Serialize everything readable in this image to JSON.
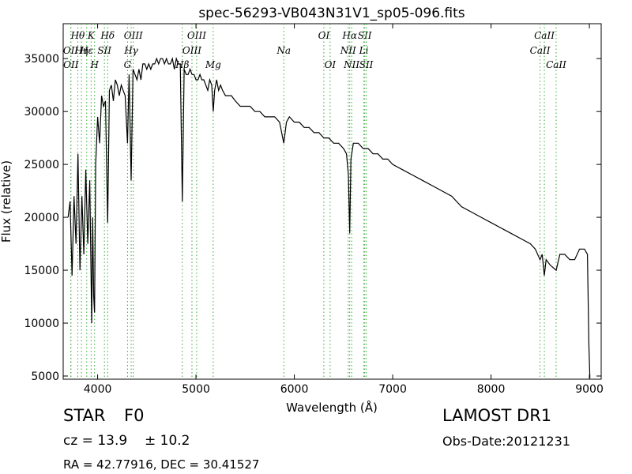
{
  "chart_data": {
    "type": "line",
    "title": "spec-56293-VB043N31V1_sp05-096.fits",
    "xlabel": "Wavelength (Å)",
    "ylabel": "Flux (relative)",
    "xlim": [
      3650,
      9120
    ],
    "ylim": [
      4700,
      38300
    ],
    "x_ticks": [
      4000,
      5000,
      6000,
      7000,
      8000,
      9000
    ],
    "y_ticks": [
      5000,
      10000,
      15000,
      20000,
      25000,
      30000,
      35000
    ],
    "grid": false,
    "line_color": "#000000",
    "marker_line_color": "#3aa83a",
    "spectral_lines": [
      {
        "label": "OII",
        "wavelength": 3727,
        "row": 2
      },
      {
        "label": "OII",
        "wavelength": 3729,
        "row": 3
      },
      {
        "label": "Hθ",
        "wavelength": 3798,
        "row": 1
      },
      {
        "label": "Hη",
        "wavelength": 3835,
        "row": 2
      },
      {
        "label": "Hε",
        "wavelength": 3889,
        "row": 2
      },
      {
        "label": "K",
        "wavelength": 3934,
        "row": 1
      },
      {
        "label": "SII",
        "wavelength": 4069,
        "row": 2
      },
      {
        "label": "H",
        "wavelength": 3969,
        "row": 3
      },
      {
        "label": "Hδ",
        "wavelength": 4102,
        "row": 1
      },
      {
        "label": "OIII",
        "wavelength": 4363,
        "row": 1
      },
      {
        "label": "Hγ",
        "wavelength": 4341,
        "row": 2
      },
      {
        "label": "G",
        "wavelength": 4304,
        "row": 3
      },
      {
        "label": "OIII",
        "wavelength": 5007,
        "row": 1
      },
      {
        "label": "OIII",
        "wavelength": 4959,
        "row": 2
      },
      {
        "label": "Hβ",
        "wavelength": 4861,
        "row": 3
      },
      {
        "label": "Mg",
        "wavelength": 5175,
        "row": 3
      },
      {
        "label": "Na",
        "wavelength": 5893,
        "row": 2
      },
      {
        "label": "OI",
        "wavelength": 6300,
        "row": 1
      },
      {
        "label": "OI",
        "wavelength": 6364,
        "row": 3
      },
      {
        "label": "Hα",
        "wavelength": 6563,
        "row": 1
      },
      {
        "label": "NII",
        "wavelength": 6548,
        "row": 2
      },
      {
        "label": "NII",
        "wavelength": 6583,
        "row": 3
      },
      {
        "label": "SII",
        "wavelength": 6716,
        "row": 1
      },
      {
        "label": "Li",
        "wavelength": 6707,
        "row": 2
      },
      {
        "label": "SII",
        "wavelength": 6731,
        "row": 3
      },
      {
        "label": "CaII",
        "wavelength": 8542,
        "row": 1
      },
      {
        "label": "CaII",
        "wavelength": 8498,
        "row": 2
      },
      {
        "label": "CaII",
        "wavelength": 8662,
        "row": 3
      }
    ],
    "series": [
      {
        "x": [
          3700,
          3720,
          3740,
          3760,
          3780,
          3800,
          3820,
          3840,
          3860,
          3880,
          3900,
          3920,
          3940,
          3950,
          3960,
          3969,
          3980,
          4000,
          4020,
          4040,
          4060,
          4080,
          4102,
          4120,
          4140,
          4160,
          4180,
          4200,
          4220,
          4240,
          4260,
          4280,
          4304,
          4320,
          4341,
          4360,
          4380,
          4400,
          4420,
          4440,
          4460,
          4480,
          4500,
          4520,
          4540,
          4560,
          4580,
          4600,
          4620,
          4640,
          4660,
          4680,
          4700,
          4720,
          4740,
          4760,
          4780,
          4800,
          4820,
          4840,
          4861,
          4880,
          4900,
          4920,
          4940,
          4960,
          4980,
          5000,
          5020,
          5040,
          5060,
          5080,
          5100,
          5120,
          5140,
          5160,
          5175,
          5190,
          5210,
          5230,
          5250,
          5270,
          5300,
          5330,
          5360,
          5400,
          5450,
          5500,
          5550,
          5600,
          5650,
          5700,
          5750,
          5800,
          5850,
          5893,
          5920,
          5950,
          6000,
          6050,
          6100,
          6150,
          6200,
          6250,
          6300,
          6350,
          6400,
          6450,
          6500,
          6530,
          6550,
          6563,
          6575,
          6600,
          6650,
          6700,
          6750,
          6800,
          6850,
          6900,
          6950,
          7000,
          7100,
          7200,
          7300,
          7400,
          7500,
          7600,
          7650,
          7700,
          7800,
          7900,
          8000,
          8100,
          8200,
          8300,
          8400,
          8450,
          8498,
          8520,
          8542,
          8560,
          8600,
          8662,
          8700,
          8750,
          8800,
          8850,
          8900,
          8950,
          8980,
          8995,
          9005
        ],
        "y": [
          20000,
          21500,
          14500,
          22000,
          17500,
          26000,
          15000,
          22000,
          16500,
          24500,
          17500,
          23500,
          10000,
          20000,
          12500,
          11000,
          25000,
          29500,
          27000,
          31500,
          30500,
          31000,
          19500,
          32000,
          32500,
          31000,
          33000,
          32500,
          31500,
          32500,
          32000,
          31500,
          27000,
          33500,
          23500,
          34000,
          33500,
          33000,
          34000,
          33000,
          34500,
          34500,
          34000,
          34500,
          34000,
          34500,
          34500,
          35000,
          34500,
          35000,
          35000,
          34500,
          35000,
          34500,
          34500,
          35000,
          34000,
          35000,
          34500,
          34500,
          21500,
          34000,
          33500,
          33500,
          34000,
          33500,
          33500,
          33000,
          33000,
          33500,
          33000,
          33000,
          32500,
          32000,
          33000,
          32500,
          30000,
          32000,
          33000,
          32000,
          32500,
          32000,
          31500,
          31500,
          31500,
          31000,
          30500,
          30500,
          30500,
          30000,
          30000,
          29500,
          29500,
          29500,
          29000,
          27000,
          29000,
          29500,
          29000,
          29000,
          28500,
          28500,
          28000,
          28000,
          27500,
          27500,
          27000,
          27000,
          26500,
          26000,
          24000,
          18500,
          25500,
          27000,
          27000,
          26500,
          26500,
          26000,
          26000,
          25500,
          25500,
          25000,
          24500,
          24000,
          23500,
          23000,
          22500,
          22000,
          21500,
          21000,
          20500,
          20000,
          19500,
          19000,
          18500,
          18000,
          17500,
          17000,
          16000,
          16500,
          14500,
          16000,
          15500,
          15000,
          16500,
          16500,
          16000,
          16000,
          17000,
          17000,
          16500,
          8000,
          4800
        ]
      }
    ]
  },
  "info": {
    "class_label": "STAR",
    "subclass_label": "F0",
    "cz_text": "cz = 13.9",
    "cz_err_text": "± 10.2",
    "coords_text": "RA = 42.77916, DEC = 30.41527",
    "survey_text": "LAMOST DR1",
    "obs_date_text": "Obs-Date:20121231"
  }
}
